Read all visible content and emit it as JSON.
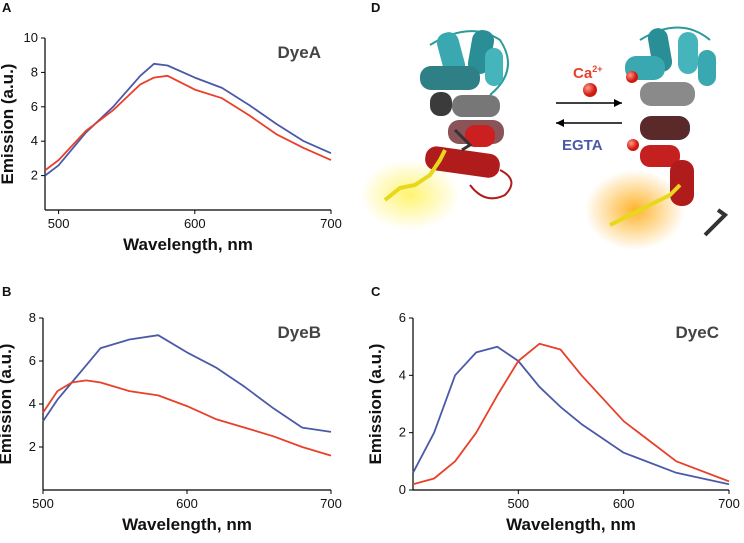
{
  "chart_data": [
    {
      "type": "line",
      "panel_label": "A",
      "title": "DyeA",
      "x_label": "Wavelength, nm",
      "y_label": "Emission (a.u.)",
      "x": [
        490,
        500,
        520,
        540,
        560,
        570,
        580,
        600,
        620,
        640,
        660,
        680,
        700
      ],
      "series": [
        {
          "color": "#4a5aa8",
          "values": [
            2.0,
            2.6,
            4.5,
            6.0,
            7.8,
            8.5,
            8.4,
            7.7,
            7.1,
            6.1,
            5.0,
            4.0,
            3.3
          ]
        },
        {
          "color": "#e8402a",
          "values": [
            2.3,
            2.9,
            4.6,
            5.8,
            7.3,
            7.7,
            7.8,
            7.0,
            6.5,
            5.5,
            4.4,
            3.6,
            2.9
          ]
        }
      ],
      "xlim": [
        490,
        700
      ],
      "xticks": [
        500,
        600,
        700
      ],
      "ylim": [
        0,
        10
      ],
      "yticks": [
        2,
        4,
        6,
        8,
        10
      ]
    },
    {
      "type": "line",
      "panel_label": "B",
      "title": "DyeB",
      "x_label": "Wavelength, nm",
      "y_label": "Emission (a.u.)",
      "x": [
        500,
        510,
        520,
        530,
        540,
        560,
        580,
        600,
        620,
        640,
        660,
        680,
        700
      ],
      "series": [
        {
          "color": "#4a5aa8",
          "values": [
            3.2,
            4.2,
            5.0,
            5.8,
            6.6,
            7.0,
            7.2,
            6.4,
            5.7,
            4.8,
            3.8,
            2.9,
            2.7
          ]
        },
        {
          "color": "#e8402a",
          "values": [
            3.6,
            4.6,
            5.0,
            5.1,
            5.0,
            4.6,
            4.4,
            3.9,
            3.3,
            2.9,
            2.5,
            2.0,
            1.6
          ]
        }
      ],
      "xlim": [
        500,
        700
      ],
      "xticks": [
        500,
        600,
        700
      ],
      "ylim": [
        0,
        8
      ],
      "yticks": [
        2,
        4,
        6,
        8
      ]
    },
    {
      "type": "line",
      "panel_label": "C",
      "title": "DyeC",
      "x_label": "Wavelength, nm",
      "y_label": "Emission (a.u.)",
      "x": [
        400,
        420,
        440,
        460,
        480,
        500,
        520,
        540,
        560,
        600,
        650,
        700
      ],
      "series": [
        {
          "color": "#4a5aa8",
          "values": [
            0.6,
            2.0,
            4.0,
            4.8,
            5.0,
            4.5,
            3.6,
            2.9,
            2.3,
            1.3,
            0.6,
            0.2
          ]
        },
        {
          "color": "#e8402a",
          "values": [
            0.2,
            0.4,
            1.0,
            2.0,
            3.3,
            4.5,
            5.1,
            4.9,
            4.0,
            2.4,
            1.0,
            0.3
          ]
        }
      ],
      "xlim": [
        400,
        700
      ],
      "xticks": [
        500,
        600,
        700
      ],
      "ylim": [
        0,
        6
      ],
      "yticks": [
        0,
        2,
        4,
        6
      ]
    }
  ],
  "diagram": {
    "panel_label": "D",
    "ion_label": "Ca",
    "ion_charge": "2+",
    "reverse_label": "EGTA"
  }
}
